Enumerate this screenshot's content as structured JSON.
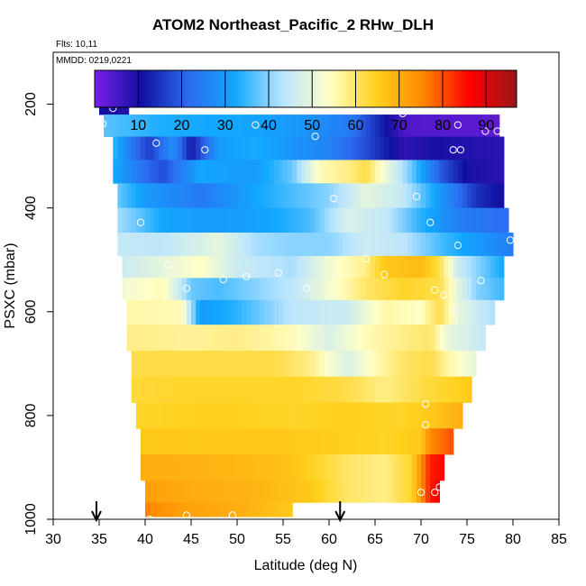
{
  "chart_data": {
    "type": "heatmap",
    "title": "ATOM2 Northeast_Pacific_2 RHw_DLH",
    "note_flights": "Flts: 10,11",
    "note_dates": "MMDD: 0219,0221",
    "xlabel": "Latitude (deg N)",
    "ylabel": "PSXC (mbar)",
    "xlim": [
      30,
      85
    ],
    "ylim": [
      1000,
      100
    ],
    "x_ticks": [
      30,
      35,
      40,
      45,
      50,
      55,
      60,
      65,
      70,
      75,
      80,
      85
    ],
    "y_ticks": [
      200,
      400,
      600,
      800,
      1000
    ],
    "colorbar": {
      "range": [
        0,
        97
      ],
      "ticks": [
        10,
        20,
        30,
        40,
        50,
        60,
        70,
        80,
        90
      ],
      "colors": [
        "#7B1FE8",
        "#1010A0",
        "#2C6BF0",
        "#12A8FF",
        "#B8E4FF",
        "#FFFFC8",
        "#FFD21E",
        "#FF8800",
        "#FF0000",
        "#9A1616"
      ]
    },
    "rows": [
      {
        "p": 200,
        "lat": [
          35,
          38.2
        ],
        "stops": [
          [
            35,
            11
          ],
          [
            38.2,
            9
          ]
        ]
      },
      {
        "p": 240,
        "lat": [
          35.5,
          78.5
        ],
        "stops": [
          [
            35.5,
            37
          ],
          [
            42,
            33
          ],
          [
            50,
            32
          ],
          [
            56,
            30
          ],
          [
            62,
            25
          ],
          [
            66,
            12
          ],
          [
            68,
            5
          ],
          [
            70,
            4
          ],
          [
            78.5,
            3
          ]
        ]
      },
      {
        "p": 285,
        "lat": [
          36.5,
          79
        ],
        "stops": [
          [
            36.5,
            35
          ],
          [
            38.5,
            24
          ],
          [
            40.5,
            16
          ],
          [
            43,
            28
          ],
          [
            45,
            12
          ],
          [
            48,
            30
          ],
          [
            52,
            33
          ],
          [
            56,
            29
          ],
          [
            60,
            26
          ],
          [
            64,
            18
          ],
          [
            68,
            8
          ],
          [
            72,
            10
          ],
          [
            79,
            8
          ]
        ]
      },
      {
        "p": 330,
        "lat": [
          36.5,
          79
        ],
        "stops": [
          [
            36.5,
            33
          ],
          [
            40,
            22
          ],
          [
            42,
            18
          ],
          [
            46,
            32
          ],
          [
            52,
            30
          ],
          [
            56,
            38
          ],
          [
            59,
            55
          ],
          [
            62,
            58
          ],
          [
            64,
            62
          ],
          [
            66,
            52
          ],
          [
            69,
            38
          ],
          [
            72,
            20
          ],
          [
            75,
            10
          ],
          [
            79,
            8
          ]
        ]
      },
      {
        "p": 375,
        "lat": [
          37,
          79
        ],
        "stops": [
          [
            37,
            38
          ],
          [
            40,
            30
          ],
          [
            46,
            24
          ],
          [
            52,
            32
          ],
          [
            56,
            36
          ],
          [
            60,
            40
          ],
          [
            64,
            50
          ],
          [
            68,
            45
          ],
          [
            72,
            30
          ],
          [
            76,
            15
          ],
          [
            79,
            10
          ]
        ]
      },
      {
        "p": 425,
        "lat": [
          37,
          79.5
        ],
        "stops": [
          [
            37,
            42
          ],
          [
            42,
            32
          ],
          [
            48,
            30
          ],
          [
            54,
            32
          ],
          [
            58,
            36
          ],
          [
            62,
            48
          ],
          [
            66,
            45
          ],
          [
            70,
            34
          ],
          [
            74,
            25
          ],
          [
            79.5,
            22
          ]
        ]
      },
      {
        "p": 470,
        "lat": [
          37,
          80
        ],
        "stops": [
          [
            37,
            45
          ],
          [
            42,
            44
          ],
          [
            48,
            50
          ],
          [
            52,
            42
          ],
          [
            56,
            40
          ],
          [
            60,
            40
          ],
          [
            64,
            46
          ],
          [
            68,
            44
          ],
          [
            72,
            36
          ],
          [
            76,
            30
          ],
          [
            80,
            25
          ]
        ]
      },
      {
        "p": 515,
        "lat": [
          37.5,
          79
        ],
        "stops": [
          [
            37.5,
            46
          ],
          [
            42,
            50
          ],
          [
            46,
            54
          ],
          [
            50,
            46
          ],
          [
            56,
            42
          ],
          [
            60,
            52
          ],
          [
            64,
            58
          ],
          [
            66,
            66
          ],
          [
            70,
            68
          ],
          [
            72,
            62
          ],
          [
            74,
            46
          ],
          [
            79,
            32
          ]
        ]
      },
      {
        "p": 555,
        "lat": [
          37.5,
          79
        ],
        "stops": [
          [
            37.5,
            52
          ],
          [
            42,
            55
          ],
          [
            45,
            38
          ],
          [
            48,
            36
          ],
          [
            52,
            40
          ],
          [
            56,
            44
          ],
          [
            60,
            52
          ],
          [
            64,
            60
          ],
          [
            68,
            64
          ],
          [
            72,
            62
          ],
          [
            74,
            50
          ],
          [
            76,
            40
          ],
          [
            79,
            35
          ]
        ]
      },
      {
        "p": 600,
        "lat": [
          38,
          78
        ],
        "stops": [
          [
            38,
            56
          ],
          [
            44,
            55
          ],
          [
            46,
            30
          ],
          [
            50,
            34
          ],
          [
            56,
            44
          ],
          [
            62,
            46
          ],
          [
            66,
            56
          ],
          [
            70,
            54
          ],
          [
            72,
            62
          ],
          [
            74,
            50
          ],
          [
            78,
            42
          ]
        ]
      },
      {
        "p": 650,
        "lat": [
          38,
          77
        ],
        "stops": [
          [
            38,
            58
          ],
          [
            45,
            57
          ],
          [
            50,
            58
          ],
          [
            56,
            55
          ],
          [
            60,
            48
          ],
          [
            64,
            55
          ],
          [
            68,
            58
          ],
          [
            71,
            60
          ],
          [
            73,
            50
          ],
          [
            77,
            45
          ]
        ]
      },
      {
        "p": 700,
        "lat": [
          38.5,
          76
        ],
        "stops": [
          [
            38.5,
            62
          ],
          [
            46,
            62
          ],
          [
            54,
            62
          ],
          [
            58,
            58
          ],
          [
            62,
            48
          ],
          [
            65,
            55
          ],
          [
            68,
            60
          ],
          [
            71,
            62
          ],
          [
            73,
            56
          ],
          [
            76,
            50
          ]
        ]
      },
      {
        "p": 750,
        "lat": [
          38.5,
          75.5
        ],
        "stops": [
          [
            38.5,
            63
          ],
          [
            46,
            64
          ],
          [
            56,
            64
          ],
          [
            62,
            62
          ],
          [
            66,
            58
          ],
          [
            70,
            62
          ],
          [
            73,
            64
          ],
          [
            75.5,
            66
          ]
        ]
      },
      {
        "p": 800,
        "lat": [
          39,
          74.5
        ],
        "stops": [
          [
            39,
            64
          ],
          [
            48,
            65
          ],
          [
            56,
            64
          ],
          [
            62,
            65
          ],
          [
            68,
            64
          ],
          [
            71,
            66
          ],
          [
            74.5,
            70
          ]
        ]
      },
      {
        "p": 850,
        "lat": [
          39.5,
          73.5
        ],
        "stops": [
          [
            39.5,
            66
          ],
          [
            48,
            66
          ],
          [
            56,
            66
          ],
          [
            62,
            65
          ],
          [
            66,
            64
          ],
          [
            70,
            66
          ],
          [
            71,
            75
          ],
          [
            73.5,
            80
          ]
        ]
      },
      {
        "p": 900,
        "lat": [
          39.5,
          72.5
        ],
        "stops": [
          [
            39.5,
            70
          ],
          [
            48,
            69
          ],
          [
            56,
            67
          ],
          [
            62,
            60
          ],
          [
            66,
            58
          ],
          [
            69,
            64
          ],
          [
            71,
            84
          ],
          [
            72.5,
            86
          ]
        ]
      },
      {
        "p": 950,
        "lat": [
          40,
          72
        ],
        "stops": [
          [
            40,
            72
          ],
          [
            46,
            70
          ],
          [
            52,
            69
          ],
          [
            58,
            66
          ],
          [
            62,
            60
          ],
          [
            66,
            58
          ],
          [
            69,
            64
          ],
          [
            71,
            84
          ],
          [
            72,
            88
          ]
        ]
      },
      {
        "p": 985,
        "lat": [
          40,
          56
        ],
        "stops": [
          [
            40,
            76
          ],
          [
            44,
            72
          ],
          [
            50,
            70
          ],
          [
            56,
            66
          ]
        ]
      }
    ],
    "obs_points": [
      [
        36.5,
        208
      ],
      [
        38.5,
        198
      ],
      [
        39.5,
        198
      ],
      [
        41.2,
        275
      ],
      [
        46.5,
        288
      ],
      [
        52,
        240
      ],
      [
        58.5,
        262
      ],
      [
        68,
        218
      ],
      [
        74,
        240
      ],
      [
        77,
        252
      ],
      [
        78.3,
        252
      ],
      [
        73.5,
        288
      ],
      [
        74.3,
        288
      ],
      [
        35.4,
        238
      ],
      [
        60.5,
        382
      ],
      [
        69.5,
        378
      ],
      [
        71,
        428
      ],
      [
        39.5,
        428
      ],
      [
        74,
        472
      ],
      [
        79.7,
        462
      ],
      [
        42.5,
        510
      ],
      [
        44.5,
        555
      ],
      [
        48.5,
        538
      ],
      [
        51,
        532
      ],
      [
        54.5,
        525
      ],
      [
        57.5,
        555
      ],
      [
        64,
        498
      ],
      [
        66,
        528
      ],
      [
        71.5,
        558
      ],
      [
        76.5,
        540
      ],
      [
        72.5,
        568
      ],
      [
        73.5,
        598
      ],
      [
        70.5,
        778
      ],
      [
        70.5,
        818
      ],
      [
        70,
        948
      ],
      [
        71.5,
        948
      ],
      [
        72,
        938
      ],
      [
        40.5,
        1000
      ],
      [
        44.5,
        992
      ],
      [
        49.5,
        992
      ]
    ],
    "flight_markers_lat": [
      34.7,
      61.2
    ]
  }
}
